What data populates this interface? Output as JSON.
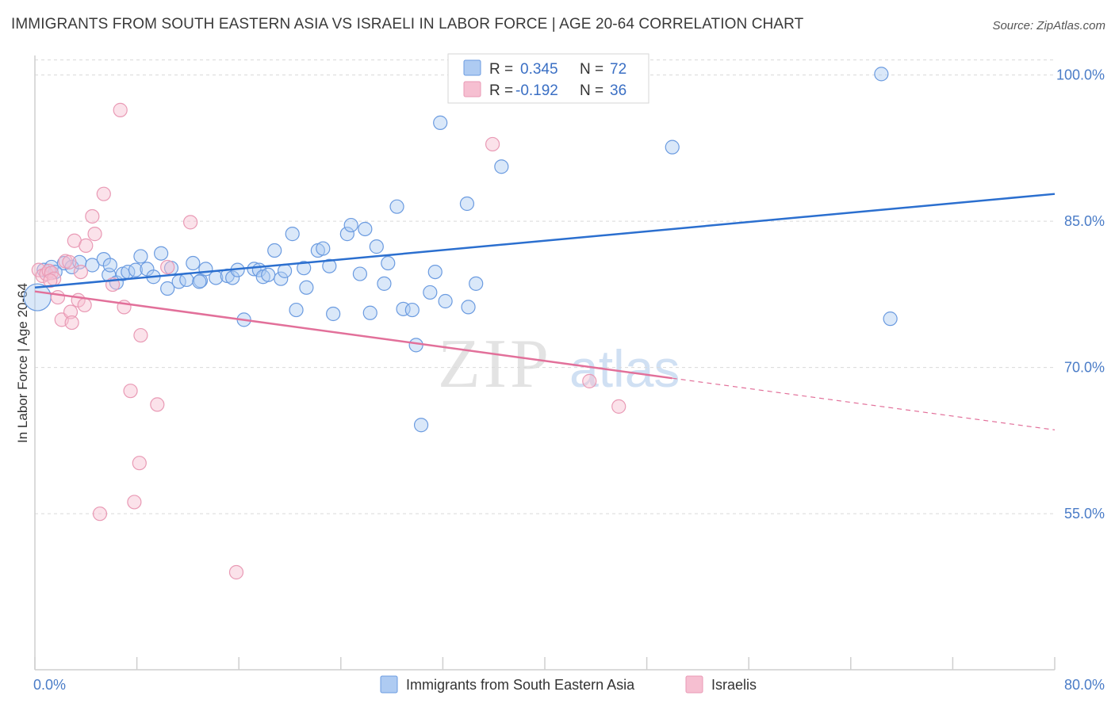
{
  "title": "IMMIGRANTS FROM SOUTH EASTERN ASIA VS ISRAELI IN LABOR FORCE | AGE 20-64 CORRELATION CHART",
  "source": "Source: ZipAtlas.com",
  "watermark": {
    "zip": "ZIP",
    "atlas": "atlas"
  },
  "colors": {
    "blue_fill": "#aecbf2",
    "blue_stroke": "#6b9be0",
    "blue_line": "#2b6fcf",
    "pink_fill": "#f6bfd1",
    "pink_stroke": "#e99ab5",
    "pink_line": "#e2709a",
    "grid": "#d9d9d9",
    "axis_text": "#4a7cc7"
  },
  "stats_legend": [
    {
      "r_label": "R =",
      "r_value": "0.345",
      "n_label": "N =",
      "n_value": "72"
    },
    {
      "r_label": "R =",
      "r_value": "-0.192",
      "n_label": "N =",
      "n_value": "36"
    }
  ],
  "chart_data": {
    "type": "scatter",
    "title": "IMMIGRANTS FROM SOUTH EASTERN ASIA VS ISRAELI IN LABOR FORCE | AGE 20-64 CORRELATION CHART",
    "xlabel": "",
    "ylabel": "In Labor Force | Age 20-64",
    "xlim": [
      0,
      80
    ],
    "ylim": [
      39,
      102
    ],
    "x_tick_labels": [
      "0.0%",
      "80.0%"
    ],
    "y_ticks": [
      55,
      70,
      85,
      100
    ],
    "y_tick_labels": [
      "55.0%",
      "70.0%",
      "85.0%",
      "100.0%"
    ],
    "grid": "horizontal dashed",
    "legend_position": "bottom",
    "series": [
      {
        "name": "Immigrants from South Eastern Asia",
        "color": "#aecbf2",
        "trend": {
          "x": [
            0,
            80
          ],
          "y": [
            78.2,
            87.8
          ]
        },
        "points": [
          [
            0.2,
            77.2
          ],
          [
            0.7,
            80.0
          ],
          [
            1.3,
            80.3
          ],
          [
            1.6,
            79.8
          ],
          [
            2.3,
            80.7
          ],
          [
            2.9,
            80.3
          ],
          [
            3.5,
            80.8
          ],
          [
            4.5,
            80.5
          ],
          [
            5.4,
            81.1
          ],
          [
            5.8,
            79.5
          ],
          [
            6.4,
            78.7
          ],
          [
            6.9,
            79.6
          ],
          [
            7.3,
            79.8
          ],
          [
            7.9,
            80.0
          ],
          [
            8.3,
            81.4
          ],
          [
            8.8,
            80.1
          ],
          [
            9.3,
            79.3
          ],
          [
            9.9,
            81.7
          ],
          [
            10.4,
            78.1
          ],
          [
            10.7,
            80.2
          ],
          [
            11.3,
            78.8
          ],
          [
            11.9,
            79.0
          ],
          [
            12.4,
            80.7
          ],
          [
            13.0,
            78.9
          ],
          [
            13.4,
            80.1
          ],
          [
            14.2,
            79.2
          ],
          [
            15.1,
            79.4
          ],
          [
            15.5,
            79.2
          ],
          [
            15.9,
            80.0
          ],
          [
            16.4,
            74.9
          ],
          [
            17.2,
            80.1
          ],
          [
            17.6,
            80.0
          ],
          [
            17.9,
            79.3
          ],
          [
            18.3,
            79.5
          ],
          [
            18.8,
            82.0
          ],
          [
            19.3,
            79.1
          ],
          [
            19.6,
            79.9
          ],
          [
            20.2,
            83.7
          ],
          [
            20.5,
            75.9
          ],
          [
            21.1,
            80.2
          ],
          [
            21.3,
            78.2
          ],
          [
            22.2,
            82.0
          ],
          [
            22.6,
            82.2
          ],
          [
            23.1,
            80.4
          ],
          [
            23.4,
            75.5
          ],
          [
            24.5,
            83.7
          ],
          [
            24.8,
            84.6
          ],
          [
            25.5,
            79.6
          ],
          [
            25.9,
            84.2
          ],
          [
            26.3,
            75.6
          ],
          [
            26.8,
            82.4
          ],
          [
            27.4,
            78.6
          ],
          [
            27.7,
            80.7
          ],
          [
            28.4,
            86.5
          ],
          [
            28.9,
            76.0
          ],
          [
            29.6,
            75.9
          ],
          [
            29.9,
            72.3
          ],
          [
            30.3,
            64.1
          ],
          [
            31.0,
            77.7
          ],
          [
            31.4,
            79.8
          ],
          [
            31.8,
            95.1
          ],
          [
            32.2,
            76.8
          ],
          [
            33.9,
            86.8
          ],
          [
            34.0,
            76.2
          ],
          [
            34.6,
            78.6
          ],
          [
            36.6,
            90.6
          ],
          [
            43.4,
            100.1
          ],
          [
            50.0,
            92.6
          ],
          [
            66.4,
            100.1
          ],
          [
            67.1,
            75.0
          ],
          [
            5.9,
            80.5
          ],
          [
            12.9,
            78.8
          ]
        ]
      },
      {
        "name": "Israelis",
        "color": "#f6bfd1",
        "trend": {
          "x": [
            0,
            50
          ],
          "y": [
            77.8,
            68.9
          ]
        },
        "trend_dashed": {
          "x": [
            50,
            80
          ],
          "y": [
            68.9,
            63.6
          ]
        },
        "points": [
          [
            0.3,
            80.0
          ],
          [
            0.6,
            79.4
          ],
          [
            0.9,
            79.6
          ],
          [
            1.1,
            79.9
          ],
          [
            1.3,
            79.7
          ],
          [
            1.5,
            79.1
          ],
          [
            1.8,
            77.2
          ],
          [
            2.1,
            74.9
          ],
          [
            2.4,
            80.9
          ],
          [
            2.8,
            75.7
          ],
          [
            2.9,
            74.6
          ],
          [
            3.1,
            83.0
          ],
          [
            3.4,
            76.9
          ],
          [
            3.6,
            79.8
          ],
          [
            3.9,
            76.4
          ],
          [
            4.0,
            82.5
          ],
          [
            4.5,
            85.5
          ],
          [
            4.7,
            83.7
          ],
          [
            5.1,
            55.0
          ],
          [
            5.4,
            87.8
          ],
          [
            6.1,
            78.5
          ],
          [
            6.7,
            96.4
          ],
          [
            7.0,
            76.2
          ],
          [
            7.5,
            67.6
          ],
          [
            7.8,
            56.2
          ],
          [
            8.2,
            60.2
          ],
          [
            8.3,
            73.3
          ],
          [
            9.6,
            66.2
          ],
          [
            10.4,
            80.3
          ],
          [
            12.2,
            84.9
          ],
          [
            15.8,
            49.0
          ],
          [
            35.9,
            92.9
          ],
          [
            43.5,
            68.6
          ],
          [
            45.8,
            66.0
          ],
          [
            2.7,
            80.8
          ],
          [
            1.2,
            78.9
          ]
        ]
      }
    ]
  }
}
